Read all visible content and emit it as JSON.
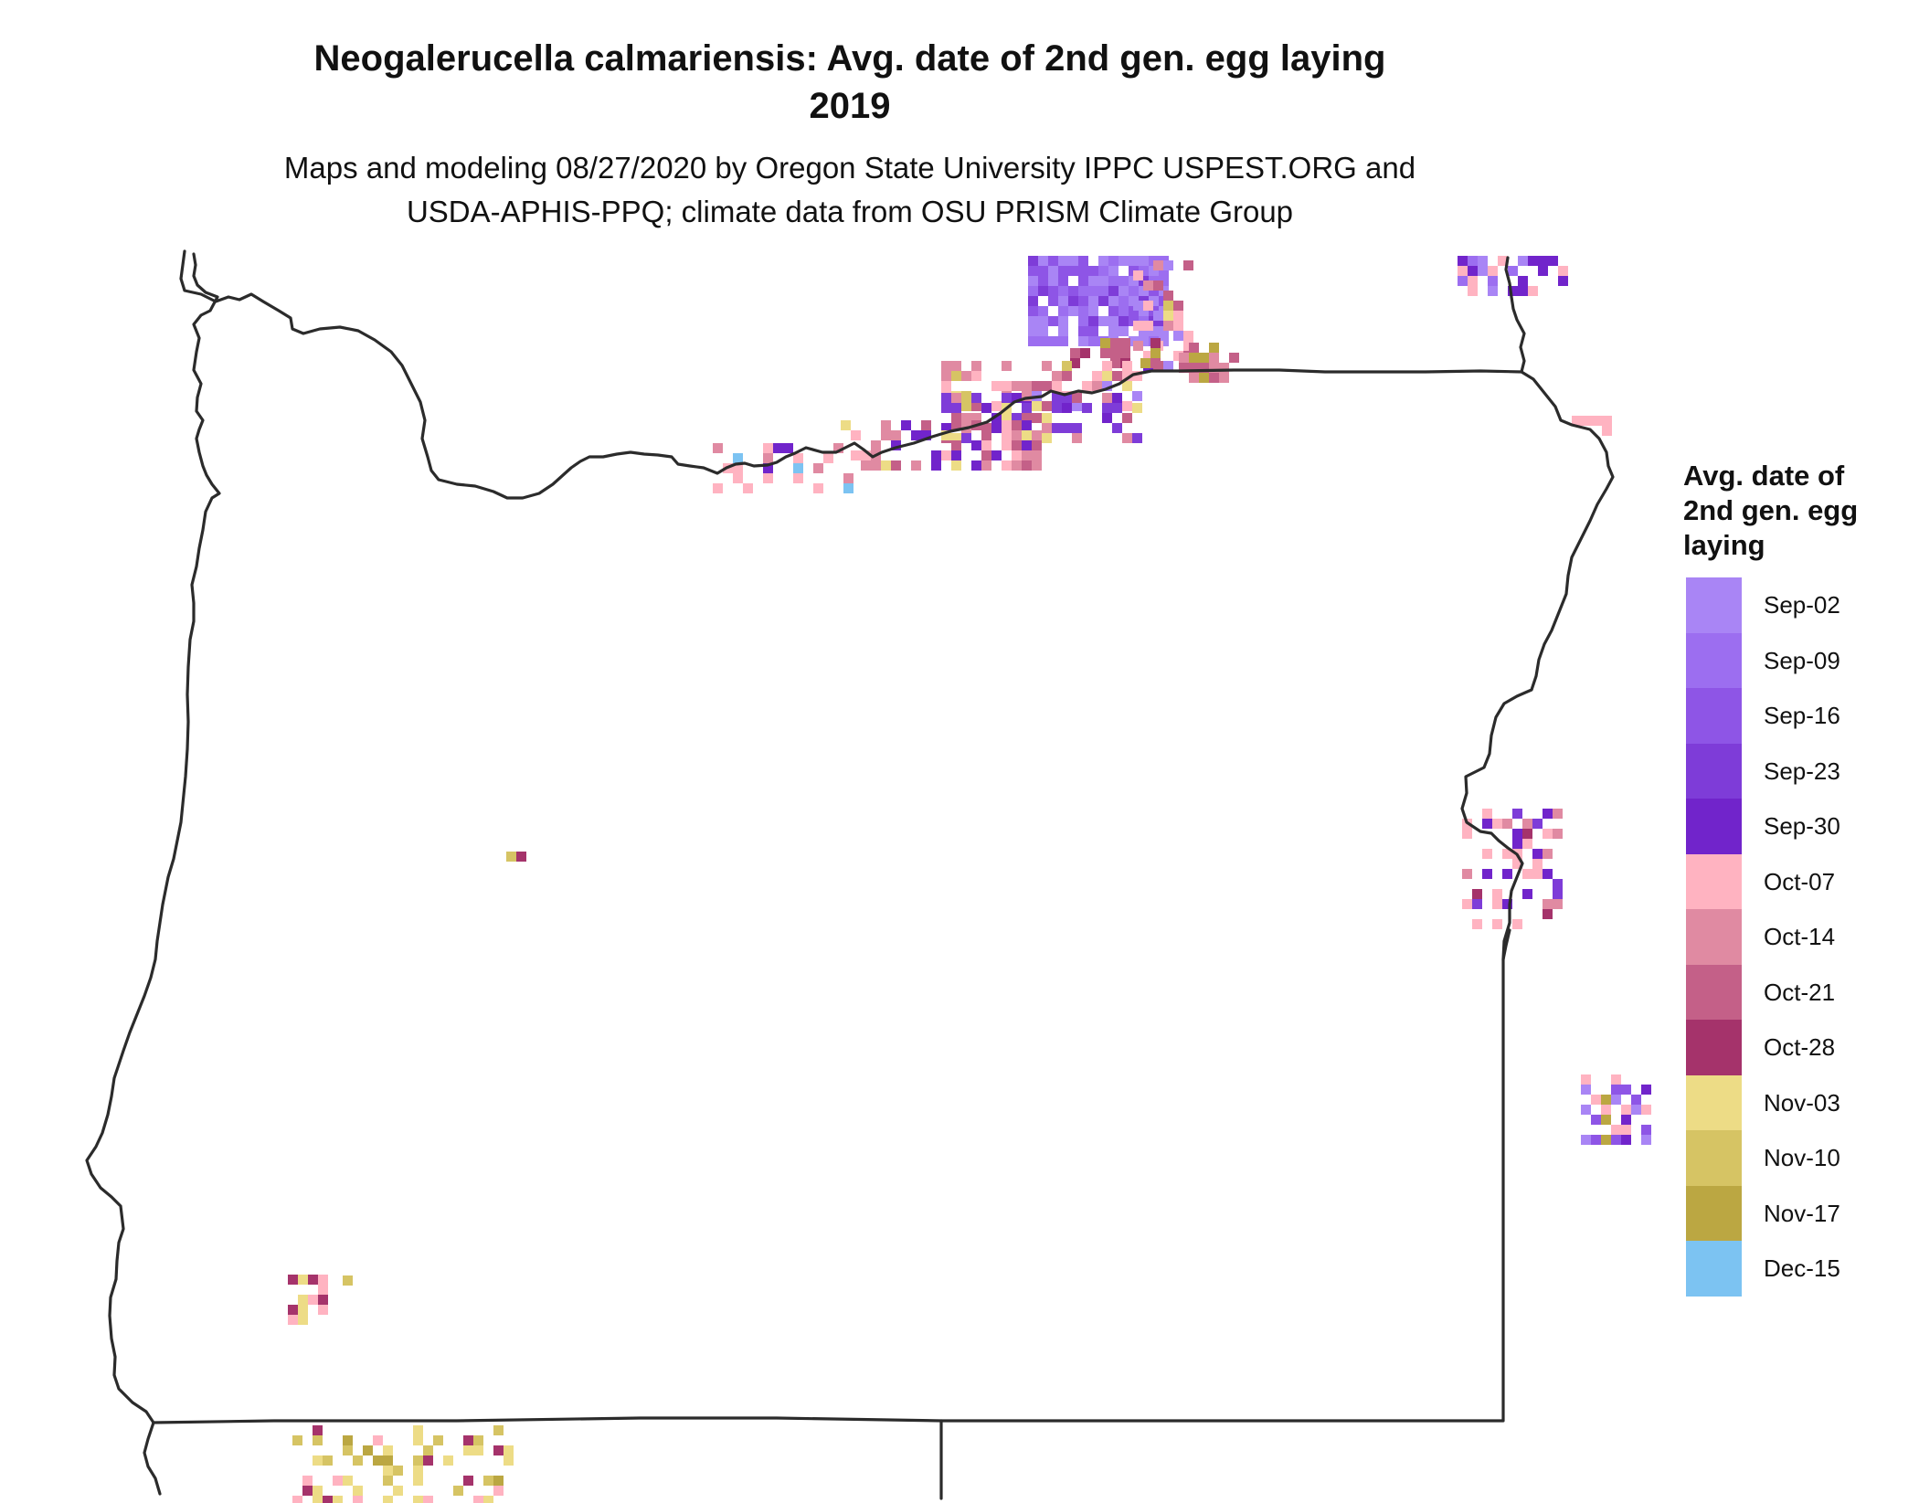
{
  "title": {
    "line1": "Neogalerucella calmariensis: Avg. date of 2nd gen. egg laying",
    "line2": "2019"
  },
  "subtitle": {
    "line1": "Maps and modeling 08/27/2020 by Oregon State University IPPC USPEST.ORG and",
    "line2": "USDA-APHIS-PPQ; climate data from OSU PRISM Climate Group"
  },
  "legend": {
    "title_lines": [
      "Avg. date of",
      "2nd gen. egg",
      "laying"
    ],
    "items": [
      {
        "label": "Sep-02",
        "color": "#a985f5"
      },
      {
        "label": "Sep-09",
        "color": "#9c6ef0"
      },
      {
        "label": "Sep-16",
        "color": "#8e55e6"
      },
      {
        "label": "Sep-23",
        "color": "#7e3cd8"
      },
      {
        "label": "Sep-30",
        "color": "#7124cb"
      },
      {
        "label": "Oct-07",
        "color": "#ffb3c1"
      },
      {
        "label": "Oct-14",
        "color": "#e08aa2"
      },
      {
        "label": "Oct-21",
        "color": "#c46088"
      },
      {
        "label": "Oct-28",
        "color": "#a5336b"
      },
      {
        "label": "Nov-03",
        "color": "#eddc86"
      },
      {
        "label": "Nov-10",
        "color": "#d6c464"
      },
      {
        "label": "Nov-17",
        "color": "#bba742"
      },
      {
        "label": "Dec-15",
        "color": "#7cc3f2"
      }
    ]
  },
  "map": {
    "outline_color": "#2b2b2b"
  }
}
